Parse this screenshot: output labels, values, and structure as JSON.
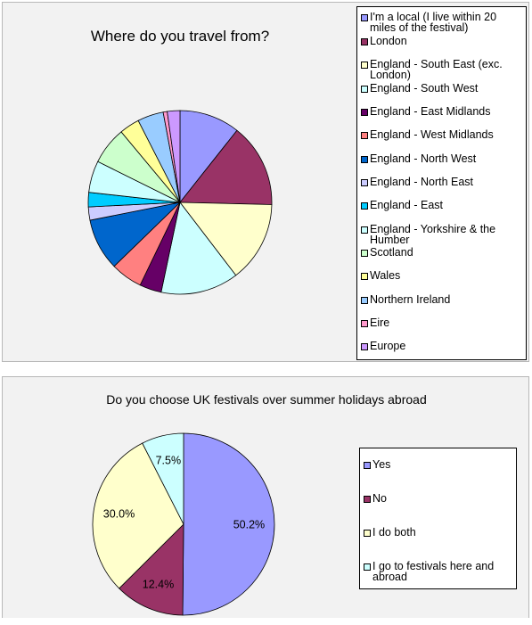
{
  "chart_data": [
    {
      "type": "pie",
      "title": "Where do you travel from?",
      "legend_position": "right",
      "categories": [
        "I'm a local (I live within 20 miles of the festival)",
        "London",
        "England - South East (exc. London)",
        "England - South West",
        "England - East Midlands",
        "England - West Midlands",
        "England - North West",
        "England - North East",
        "England - East",
        "England - Yorkshire & the Humber",
        "Scotland",
        "Wales",
        "Northern Ireland",
        "Eire",
        "Europe"
      ],
      "values": [
        10.5,
        14.5,
        14.0,
        13.5,
        3.8,
        5.5,
        9.0,
        2.3,
        2.5,
        5.5,
        6.5,
        3.5,
        4.5,
        0.7,
        2.2
      ],
      "colors": [
        "#9999ff",
        "#993366",
        "#ffffcc",
        "#ccffff",
        "#660066",
        "#ff8080",
        "#0066cc",
        "#ccccff",
        "#00ccff",
        "#ccffff",
        "#ccffcc",
        "#ffff99",
        "#99ccff",
        "#ff99cc",
        "#cc99ff"
      ]
    },
    {
      "type": "pie",
      "title": "Do you choose UK festivals over summer holidays abroad",
      "legend_position": "right",
      "categories": [
        "Yes",
        "No",
        "I do both",
        "I go to festivals here and abroad"
      ],
      "values": [
        50.2,
        12.4,
        30.0,
        7.5
      ],
      "data_labels": [
        "50.2%",
        "12.4%",
        "30.0%",
        "7.5%"
      ],
      "colors": [
        "#9999ff",
        "#993366",
        "#ffffcc",
        "#ccffff"
      ]
    }
  ]
}
